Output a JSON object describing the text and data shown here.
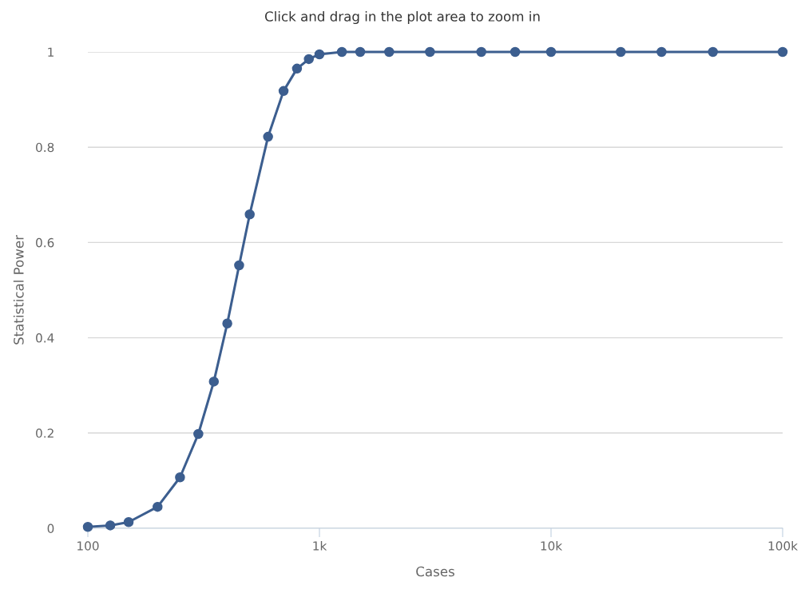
{
  "chart_data": {
    "type": "line",
    "title": "Click and drag in the plot area to zoom in",
    "xlabel": "Cases",
    "ylabel": "Statistical Power",
    "x": [
      100,
      125,
      150,
      200,
      250,
      300,
      350,
      400,
      450,
      500,
      600,
      700,
      800,
      900,
      1000,
      1250,
      1500,
      2000,
      3000,
      5000,
      7000,
      10000,
      20000,
      30000,
      50000,
      100000
    ],
    "series": [
      {
        "color": "#3c5e8f",
        "values": [
          0.003,
          0.006,
          0.013,
          0.045,
          0.107,
          0.198,
          0.308,
          0.43,
          0.552,
          0.659,
          0.822,
          0.918,
          0.965,
          0.985,
          0.995,
          1,
          1,
          1,
          1,
          1,
          1,
          1,
          1,
          1,
          1,
          1
        ]
      }
    ],
    "log": "x",
    "xlim": [
      100,
      100000
    ],
    "xticks": [
      100,
      {
        "value": 1000,
        "label": "1k"
      },
      {
        "value": 10000,
        "label": "10k"
      },
      {
        "value": 100000,
        "label": "100k"
      }
    ],
    "ylim": [
      0,
      1
    ],
    "yticks": [
      0,
      0.2,
      0.4,
      0.6,
      0.8,
      1
    ],
    "grid": "y",
    "marker": "circle",
    "line_style": "solid"
  }
}
